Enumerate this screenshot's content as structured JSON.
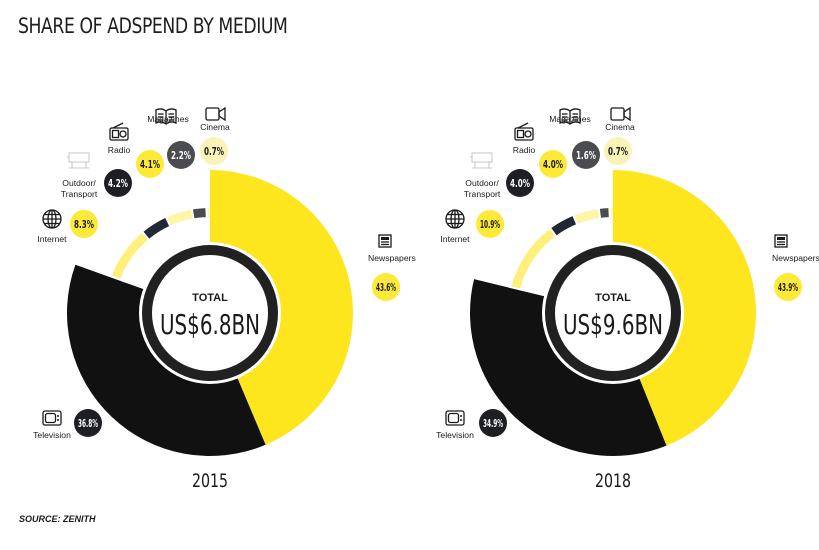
{
  "title": "SHARE OF ADSPEND BY MEDIUM",
  "source": "SOURCE: ZENITH",
  "colors": {
    "Newspapers": "#fde61e",
    "Television": "#111111",
    "Internet": "#fef07a",
    "Outdoor/ Transport": "#232733",
    "Radio": "#fef5a6",
    "Magazines": "#4a4b4f",
    "Cinema": "#fef8c8",
    "inner_ring": "#212121",
    "badge_light": "#fde938",
    "badge_dark": "#1e1f23",
    "badge_grey": "#4b4c50",
    "badge_pale": "#fbf2b8"
  },
  "icons": {
    "Newspapers": "newspaper-icon",
    "Television": "television-icon",
    "Internet": "globe-icon",
    "Outdoor/ Transport": "billboard-icon",
    "Radio": "radio-icon",
    "Magazines": "open-book-icon",
    "Cinema": "video-camera-icon"
  },
  "chart_data": [
    {
      "type": "pie",
      "year_label": "2015",
      "center_label": "TOTAL",
      "center_value": "US$6.8BN",
      "slices": [
        {
          "label": "Newspapers",
          "value": 43.6,
          "display": "43.6%"
        },
        {
          "label": "Television",
          "value": 36.8,
          "display": "36.8%"
        },
        {
          "label": "Internet",
          "value": 8.3,
          "display": "8.3%"
        },
        {
          "label": "Outdoor/ Transport",
          "value": 4.2,
          "display": "4.2%"
        },
        {
          "label": "Radio",
          "value": 4.1,
          "display": "4.1%"
        },
        {
          "label": "Magazines",
          "value": 2.2,
          "display": "2.2%"
        },
        {
          "label": "Cinema",
          "value": 0.7,
          "display": "0.7%"
        }
      ]
    },
    {
      "type": "pie",
      "year_label": "2018",
      "center_label": "TOTAL",
      "center_value": "US$9.6BN",
      "slices": [
        {
          "label": "Newspapers",
          "value": 43.9,
          "display": "43.9%"
        },
        {
          "label": "Television",
          "value": 34.9,
          "display": "34.9%"
        },
        {
          "label": "Internet",
          "value": 10.9,
          "display": "10.9%"
        },
        {
          "label": "Outdoor/ Transport",
          "value": 4.0,
          "display": "4.0%"
        },
        {
          "label": "Radio",
          "value": 4.0,
          "display": "4.0%"
        },
        {
          "label": "Magazines",
          "value": 1.6,
          "display": "1.6%"
        },
        {
          "label": "Cinema",
          "value": 0.7,
          "display": "0.7%"
        }
      ]
    }
  ]
}
